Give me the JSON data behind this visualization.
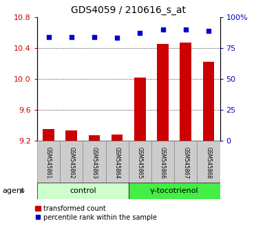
{
  "title": "GDS4059 / 210616_s_at",
  "samples": [
    "GSM545861",
    "GSM545862",
    "GSM545863",
    "GSM545864",
    "GSM545865",
    "GSM545866",
    "GSM545867",
    "GSM545868"
  ],
  "bar_values": [
    9.35,
    9.34,
    9.27,
    9.28,
    10.02,
    10.45,
    10.47,
    10.22
  ],
  "percentile_values": [
    84,
    84,
    84,
    83,
    87,
    90,
    90,
    89
  ],
  "ylim_left": [
    9.2,
    10.8
  ],
  "ylim_right": [
    0,
    100
  ],
  "yticks_left": [
    9.2,
    9.6,
    10.0,
    10.4,
    10.8
  ],
  "yticks_right": [
    0,
    25,
    50,
    75,
    100
  ],
  "bar_color": "#cc0000",
  "dot_color": "#0000cc",
  "bar_bottom": 9.2,
  "groups": [
    {
      "label": "control",
      "indices": [
        0,
        1,
        2,
        3
      ],
      "color": "#ccffcc"
    },
    {
      "label": "γ-tocotrienol",
      "indices": [
        4,
        5,
        6,
        7
      ],
      "color": "#44ee44"
    }
  ],
  "group_label": "agent",
  "legend_bar_label": "transformed count",
  "legend_dot_label": "percentile rank within the sample",
  "plot_bg": "#ffffff",
  "title_fontsize": 10,
  "tick_label_color_left": "#cc0000",
  "tick_label_color_right": "#0000cc",
  "sample_box_color": "#cccccc",
  "sample_box_edge": "#888888",
  "dotgrid_lines": [
    9.6,
    10.0,
    10.4
  ]
}
